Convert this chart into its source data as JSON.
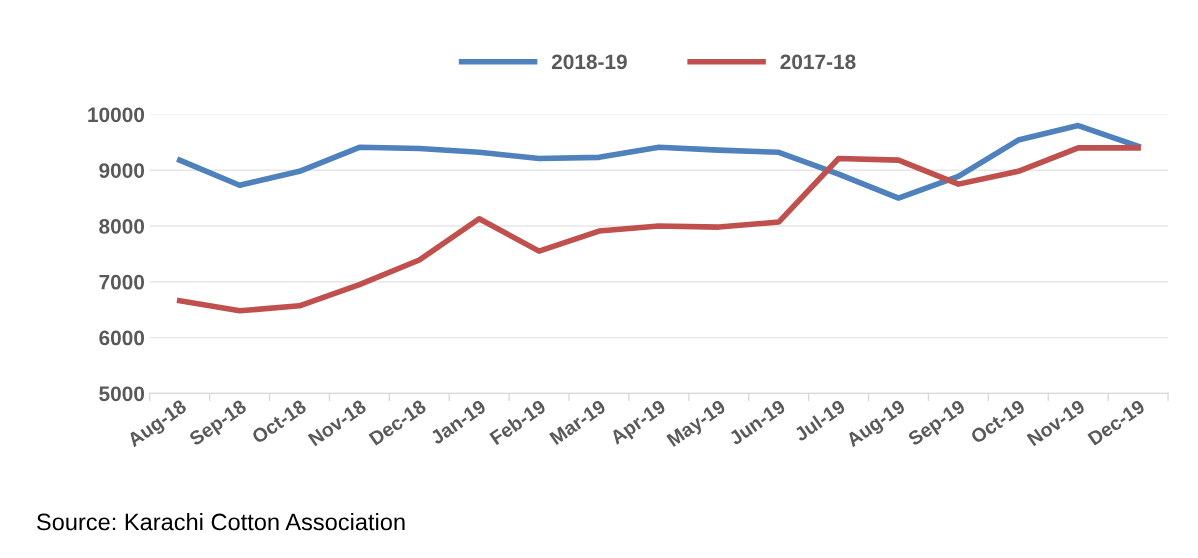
{
  "chart_data": {
    "type": "line",
    "categories": [
      "Aug-18",
      "Sep-18",
      "Oct-18",
      "Nov-18",
      "Dec-18",
      "Jan-19",
      "Feb-19",
      "Mar-19",
      "Apr-19",
      "May-19",
      "Jun-19",
      "Jul-19",
      "Aug-19",
      "Sep-19",
      "Oct-19",
      "Nov-19",
      "Dec-19"
    ],
    "series": [
      {
        "name": "2018-19",
        "color": "#4f81bd",
        "values": [
          9180,
          8730,
          8980,
          9410,
          9390,
          9320,
          9210,
          9230,
          9410,
          9360,
          9320,
          8930,
          8500,
          8890,
          9540,
          9800,
          9430
        ]
      },
      {
        "name": "2017-18",
        "color": "#c0504d",
        "values": [
          6660,
          6480,
          6570,
          6950,
          7390,
          8130,
          7550,
          7910,
          8000,
          7980,
          8070,
          9210,
          9180,
          8750,
          8980,
          9400,
          9400
        ]
      }
    ],
    "ylim": [
      5000,
      10000
    ],
    "yticks": [
      5000,
      6000,
      7000,
      8000,
      9000,
      10000
    ],
    "grid": "y",
    "legend": "top",
    "marker": "none",
    "line_style": "solid",
    "annotations": [
      "Source: Karachi Cotton Association"
    ]
  }
}
